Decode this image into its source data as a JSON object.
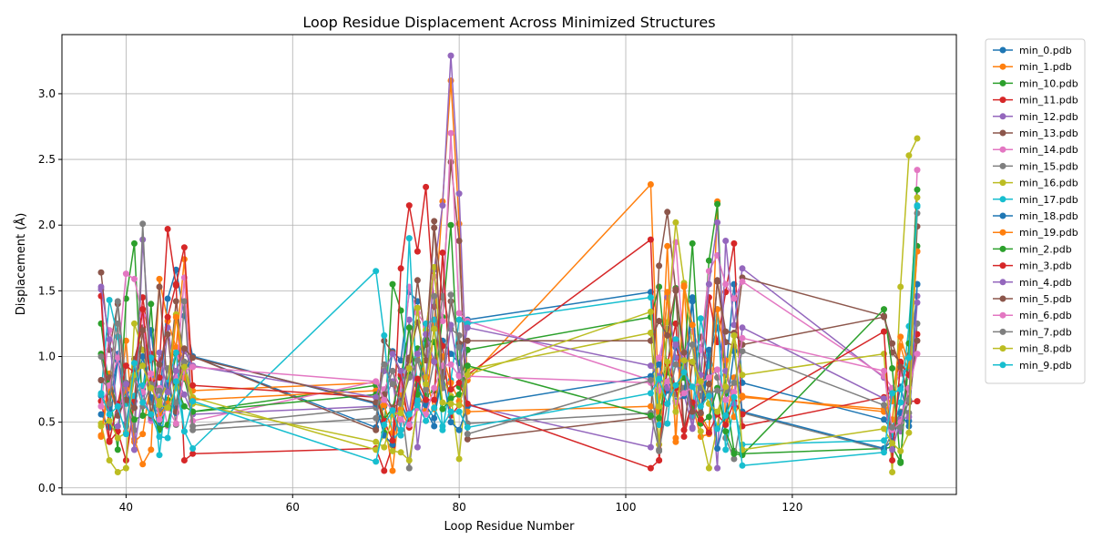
{
  "chart_data": {
    "type": "line",
    "title": "Loop Residue Displacement Across Minimized Structures",
    "xlabel": "Loop Residue Number",
    "ylabel": "Displacement (Å)",
    "xlim": [
      32.3,
      139.7
    ],
    "ylim": [
      -0.05,
      3.45
    ],
    "xticks": [
      40,
      60,
      80,
      100,
      120
    ],
    "yticks": [
      0.0,
      0.5,
      1.0,
      1.5,
      2.0,
      2.5,
      3.0
    ],
    "grid": true,
    "legend_position": "outside-right",
    "x": [
      37,
      38,
      39,
      40,
      41,
      42,
      43,
      44,
      45,
      46,
      47,
      48,
      70,
      71,
      72,
      73,
      74,
      75,
      76,
      77,
      78,
      79,
      80,
      81,
      103,
      104,
      105,
      106,
      107,
      108,
      109,
      110,
      111,
      112,
      113,
      114,
      131,
      132,
      133,
      134,
      135
    ],
    "series": [
      {
        "name": "min_0.pdb",
        "color": "#1f77b4",
        "values": [
          0.7,
          0.6,
          1.02,
          0.49,
          0.85,
          0.75,
          1.2,
          0.62,
          1.44,
          1.66,
          1.31,
          1.0,
          0.46,
          0.62,
          1.04,
          0.97,
          1.49,
          1.42,
          0.59,
          0.47,
          1.12,
          1.02,
          0.95,
          1.28,
          1.49,
          0.56,
          0.74,
          1.07,
          0.88,
          1.45,
          0.5,
          0.99,
          1.22,
          0.86,
          1.55,
          0.8,
          0.52,
          0.44,
          0.77,
          0.51,
          1.55
        ]
      },
      {
        "name": "min_1.pdb",
        "color": "#ff7f0e",
        "values": [
          0.39,
          0.87,
          0.56,
          1.12,
          0.37,
          0.18,
          0.29,
          1.59,
          1.27,
          1.07,
          1.74,
          0.74,
          0.8,
          0.52,
          0.13,
          0.71,
          0.54,
          0.73,
          0.59,
          1.24,
          2.18,
          3.1,
          2.01,
          0.82,
          2.31,
          0.57,
          1.84,
          0.35,
          1.53,
          0.63,
          0.39,
          0.41,
          2.18,
          0.5,
          0.84,
          0.69,
          0.6,
          0.52,
          1.08,
          0.86,
          1.8
        ]
      },
      {
        "name": "min_10.pdb",
        "color": "#2ca02c",
        "values": [
          1.25,
          0.73,
          0.29,
          1.44,
          1.86,
          0.55,
          1.4,
          0.44,
          0.67,
          1.02,
          0.83,
          0.58,
          0.78,
          0.42,
          1.55,
          1.35,
          0.86,
          1.06,
          0.7,
          0.74,
          1.3,
          2.0,
          0.77,
          1.05,
          1.3,
          1.53,
          0.88,
          1.52,
          0.93,
          1.86,
          0.81,
          1.73,
          2.16,
          0.72,
          0.28,
          0.26,
          0.3,
          0.31,
          0.2,
          1.0,
          1.84
        ]
      },
      {
        "name": "min_11.pdb",
        "color": "#d62728",
        "values": [
          0.66,
          0.35,
          0.43,
          0.21,
          0.66,
          1.45,
          1.02,
          0.94,
          1.97,
          1.54,
          0.21,
          0.26,
          0.3,
          0.13,
          0.32,
          1.67,
          2.15,
          1.8,
          2.29,
          1.38,
          1.08,
          0.55,
          0.63,
          0.86,
          1.89,
          0.21,
          0.94,
          1.25,
          0.39,
          0.65,
          0.52,
          1.45,
          1.11,
          1.49,
          1.86,
          0.47,
          0.69,
          0.74,
          0.96,
          0.66,
          0.66
        ]
      },
      {
        "name": "min_12.pdb",
        "color": "#9467bd",
        "values": [
          1.51,
          0.49,
          0.47,
          0.79,
          0.29,
          1.89,
          0.97,
          0.52,
          1.22,
          0.82,
          0.71,
          0.56,
          0.62,
          0.67,
          0.81,
          0.44,
          1.28,
          0.31,
          0.85,
          1.66,
          2.15,
          3.29,
          2.24,
          0.63,
          0.31,
          0.82,
          1.45,
          0.99,
          0.71,
          0.46,
          1.07,
          0.96,
          0.15,
          1.88,
          1.24,
          1.67,
          0.84,
          0.69,
          0.43,
          1.01,
          1.46
        ]
      },
      {
        "name": "min_13.pdb",
        "color": "#8c564b",
        "values": [
          1.64,
          1.05,
          1.4,
          0.67,
          0.98,
          1.22,
          0.82,
          1.53,
          0.75,
          1.42,
          0.94,
          1.0,
          0.44,
          1.12,
          1.03,
          0.86,
          0.97,
          1.58,
          1.09,
          1.98,
          1.45,
          2.48,
          1.88,
          0.37,
          0.54,
          1.69,
          2.1,
          1.5,
          0.44,
          0.95,
          1.15,
          0.79,
          1.58,
          1.11,
          1.08,
          1.6,
          1.31,
          1.03,
          0.95,
          0.65,
          1.99
        ]
      },
      {
        "name": "min_14.pdb",
        "color": "#e377c2",
        "values": [
          0.62,
          1.2,
          0.96,
          1.63,
          1.59,
          1.31,
          0.51,
          0.76,
          0.47,
          0.84,
          1.6,
          0.51,
          0.81,
          0.75,
          0.89,
          0.75,
          1.53,
          1.33,
          1.23,
          1.61,
          1.27,
          2.7,
          1.33,
          1.27,
          0.82,
          0.99,
          1.26,
          1.87,
          1.01,
          1.19,
          1.05,
          1.65,
          1.77,
          1.55,
          1.44,
          1.57,
          0.85,
          0.76,
          0.87,
          0.85,
          2.42
        ]
      },
      {
        "name": "min_15.pdb",
        "color": "#7f7f7f",
        "values": [
          0.82,
          0.76,
          1.42,
          0.8,
          0.44,
          2.01,
          0.65,
          0.59,
          0.91,
          0.48,
          1.42,
          0.47,
          0.61,
          0.71,
          0.89,
          0.66,
          0.15,
          0.66,
          0.65,
          0.97,
          1.46,
          1.21,
          1.16,
          0.49,
          0.57,
          0.29,
          1.21,
          0.71,
          0.76,
          0.54,
          0.7,
          1.01,
          0.84,
          0.38,
          0.22,
          0.57,
          0.29,
          0.42,
          0.58,
          0.57,
          1.25
        ]
      },
      {
        "name": "min_16.pdb",
        "color": "#bcbd22",
        "values": [
          0.49,
          0.21,
          0.12,
          0.15,
          1.25,
          1.05,
          0.57,
          0.66,
          0.8,
          1.32,
          0.95,
          0.69,
          0.29,
          0.4,
          0.28,
          0.27,
          0.21,
          0.61,
          1.2,
          1.68,
          0.84,
          0.7,
          0.22,
          0.9,
          1.18,
          0.33,
          1.26,
          2.02,
          1.56,
          1.09,
          0.43,
          0.15,
          0.47,
          0.89,
          1.16,
          0.86,
          1.02,
          0.12,
          1.53,
          2.53,
          2.66
        ]
      },
      {
        "name": "min_17.pdb",
        "color": "#17becf",
        "values": [
          0.72,
          1.43,
          1.15,
          0.64,
          0.7,
          0.78,
          0.99,
          0.25,
          0.8,
          1.03,
          0.43,
          0.3,
          1.65,
          1.16,
          0.36,
          0.44,
          1.9,
          0.67,
          1.25,
          1.28,
          0.44,
          0.82,
          1.28,
          1.25,
          1.45,
          0.48,
          0.49,
          1.13,
          0.91,
          0.55,
          1.29,
          0.93,
          1.36,
          0.29,
          0.62,
          0.33,
          0.36,
          0.41,
          0.65,
          1.23,
          2.14
        ]
      },
      {
        "name": "min_18.pdb",
        "color": "#1f77b4",
        "values": [
          0.56,
          0.46,
          0.97,
          0.73,
          0.61,
          1.0,
          0.69,
          0.46,
          0.78,
          0.57,
          0.88,
          1.0,
          0.64,
          0.4,
          0.33,
          0.66,
          0.49,
          0.78,
          0.63,
          0.53,
          0.87,
          0.5,
          0.44,
          0.62,
          0.85,
          0.94,
          0.78,
          0.66,
          0.7,
          1.42,
          0.57,
          1.05,
          0.3,
          0.55,
          1.04,
          0.58,
          0.3,
          0.36,
          0.57,
          0.47,
          1.55
        ]
      },
      {
        "name": "min_19.pdb",
        "color": "#ff7f0e",
        "values": [
          0.4,
          0.77,
          0.57,
          0.75,
          0.35,
          0.41,
          0.82,
          0.55,
          0.64,
          1.3,
          0.84,
          0.67,
          0.74,
          0.63,
          0.42,
          0.6,
          0.46,
          1.02,
          0.84,
          0.6,
          1.0,
          0.8,
          0.66,
          0.58,
          0.62,
          0.58,
          1.49,
          0.38,
          1.54,
          1.24,
          0.56,
          0.44,
          1.36,
          0.97,
          0.54,
          0.7,
          0.58,
          0.66,
          1.15,
          0.93,
          1.8
        ]
      },
      {
        "name": "min_2.pdb",
        "color": "#2ca02c",
        "values": [
          1.02,
          0.81,
          0.62,
          0.67,
          0.52,
          0.55,
          0.56,
          0.45,
          0.48,
          0.78,
          0.62,
          0.58,
          0.71,
          0.52,
          0.61,
          0.84,
          1.22,
          0.71,
          1.13,
          1.11,
          0.6,
          0.68,
          0.71,
          0.93,
          0.55,
          0.53,
          0.88,
          0.76,
          0.84,
          0.62,
          0.49,
          0.54,
          0.76,
          0.43,
          0.26,
          0.25,
          1.36,
          0.91,
          0.19,
          1.1,
          2.27
        ]
      },
      {
        "name": "min_3.pdb",
        "color": "#d62728",
        "values": [
          1.46,
          0.36,
          0.64,
          0.93,
          0.88,
          1.36,
          0.8,
          0.84,
          1.3,
          1.55,
          1.83,
          0.78,
          0.69,
          0.51,
          0.36,
          0.86,
          0.46,
          0.83,
          0.67,
          0.67,
          1.79,
          0.75,
          0.8,
          0.64,
          0.15,
          0.21,
          0.95,
          0.76,
          0.44,
          0.65,
          0.52,
          0.42,
          0.56,
          0.48,
          0.66,
          0.56,
          1.19,
          0.21,
          0.95,
          0.86,
          1.17
        ]
      },
      {
        "name": "min_4.pdb",
        "color": "#9467bd",
        "values": [
          1.53,
          1.13,
          0.56,
          0.79,
          0.29,
          0.72,
          0.53,
          1.03,
          0.73,
          0.89,
          1.04,
          0.93,
          0.69,
          0.89,
          1.02,
          0.89,
          0.57,
          1.02,
          1.17,
          0.96,
          0.76,
          1.24,
          0.86,
          1.22,
          0.93,
          0.85,
          0.76,
          1.09,
          0.97,
          0.45,
          0.86,
          1.55,
          2.02,
          0.89,
          0.64,
          1.22,
          0.68,
          0.29,
          0.52,
          0.54,
          1.41
        ]
      },
      {
        "name": "min_5.pdb",
        "color": "#8c564b",
        "values": [
          0.82,
          0.84,
          0.55,
          0.67,
          0.61,
          1.2,
          0.55,
          0.94,
          1.17,
          0.58,
          1.06,
          0.99,
          0.65,
          0.71,
          0.61,
          0.65,
          0.99,
          1.26,
          0.97,
          2.03,
          0.84,
          1.42,
          1.1,
          1.12,
          1.12,
          1.27,
          1.16,
          1.51,
          1.03,
          0.58,
          0.57,
          0.79,
          1.57,
          1.19,
          1.18,
          1.09,
          1.3,
          1.1,
          0.92,
          0.66,
          1.12
        ]
      },
      {
        "name": "min_6.pdb",
        "color": "#e377c2",
        "values": [
          0.62,
          0.78,
          0.99,
          0.43,
          0.84,
          0.73,
          0.87,
          0.52,
          0.61,
          0.49,
          0.89,
          0.92,
          0.81,
          0.67,
          0.59,
          0.52,
          0.48,
          0.61,
          0.56,
          0.76,
          0.93,
          0.94,
          0.85,
          0.85,
          0.8,
          0.74,
          0.81,
          0.65,
          0.72,
          0.77,
          0.8,
          0.84,
          0.9,
          0.67,
          0.73,
          1.14,
          0.89,
          0.44,
          0.5,
          0.76,
          1.02
        ]
      },
      {
        "name": "min_7.pdb",
        "color": "#7f7f7f",
        "values": [
          1.0,
          0.64,
          1.25,
          0.47,
          0.83,
          0.62,
          0.79,
          0.74,
          0.61,
          0.65,
          0.96,
          0.44,
          0.53,
          0.94,
          0.79,
          0.64,
          0.84,
          0.97,
          0.75,
          1.46,
          0.76,
          1.47,
          1.07,
          0.41,
          0.82,
          0.28,
          0.64,
          0.94,
          0.88,
          1.09,
          0.76,
          0.72,
          0.74,
          0.74,
          0.8,
          1.04,
          0.63,
          0.46,
          0.46,
          0.67,
          2.09
        ]
      },
      {
        "name": "min_8.pdb",
        "color": "#bcbd22",
        "values": [
          0.47,
          0.51,
          0.38,
          0.42,
          0.86,
          0.93,
          0.76,
          0.63,
          0.61,
          0.76,
          0.92,
          0.64,
          0.35,
          0.31,
          0.56,
          0.57,
          0.91,
          1.37,
          0.79,
          1.21,
          0.65,
          0.64,
          0.63,
          0.86,
          1.34,
          0.62,
          0.96,
          0.58,
          0.97,
          0.96,
          0.81,
          0.64,
          0.58,
          0.77,
          1.16,
          0.29,
          0.45,
          0.34,
          0.28,
          0.42,
          2.21
        ]
      },
      {
        "name": "min_9.pdb",
        "color": "#17becf",
        "values": [
          0.71,
          0.56,
          0.62,
          0.41,
          0.95,
          0.65,
          0.56,
          0.39,
          0.38,
          0.81,
          0.43,
          0.66,
          0.2,
          0.48,
          0.59,
          0.4,
          0.56,
          0.63,
          0.51,
          0.61,
          0.47,
          0.58,
          0.58,
          0.46,
          0.72,
          0.83,
          0.64,
          0.78,
          0.88,
          0.77,
          0.62,
          0.7,
          0.45,
          0.55,
          0.69,
          0.17,
          0.27,
          0.72,
          0.75,
          0.99,
          2.15
        ]
      }
    ]
  }
}
